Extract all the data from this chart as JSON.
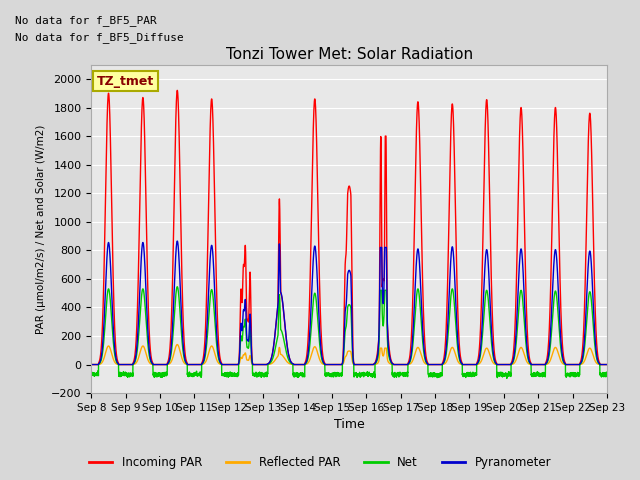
{
  "title": "Tonzi Tower Met: Solar Radiation",
  "ylabel": "PAR (μmol/m2/s) / Net and Solar (W/m2)",
  "xlabel": "Time",
  "text_line1": "No data for f_BF5_PAR",
  "text_line2": "No data for f_BF5_Diffuse",
  "legend_label_box": "TZ_tmet",
  "legend_entries": [
    "Incoming PAR",
    "Reflected PAR",
    "Net",
    "Pyranometer"
  ],
  "legend_colors": [
    "#ff0000",
    "#ffaa00",
    "#00cc00",
    "#0000cc"
  ],
  "ylim": [
    -200,
    2100
  ],
  "yticks": [
    -200,
    0,
    200,
    400,
    600,
    800,
    1000,
    1200,
    1400,
    1600,
    1800,
    2000
  ],
  "start_day": 8,
  "n_days": 15,
  "incoming_par_peaks": [
    1900,
    1870,
    1920,
    1860,
    970,
    1160,
    1860,
    1250,
    1600,
    1840,
    1825,
    1855,
    1800,
    1800,
    1760
  ],
  "pyranometer_peaks": [
    855,
    855,
    865,
    835,
    530,
    845,
    830,
    660,
    820,
    810,
    825,
    805,
    810,
    805,
    795
  ],
  "net_peaks": [
    530,
    530,
    545,
    525,
    370,
    490,
    500,
    420,
    520,
    530,
    530,
    520,
    520,
    515,
    510
  ],
  "reflected_peaks": [
    130,
    130,
    140,
    130,
    95,
    120,
    125,
    95,
    115,
    120,
    120,
    115,
    120,
    120,
    115
  ],
  "net_negative": -70,
  "net_noise_amp": 20,
  "incoming_par_color": "#ff0000",
  "reflected_par_color": "#ffaa00",
  "net_color": "#00cc00",
  "pyranometer_color": "#0000cc",
  "line_width": 1.0,
  "figsize": [
    6.4,
    4.8
  ],
  "dpi": 100,
  "bg_color": "#d8d8d8",
  "plot_bg_color": "#e8e8e8",
  "grid_color": "#ffffff",
  "peak_sigma": 0.09
}
